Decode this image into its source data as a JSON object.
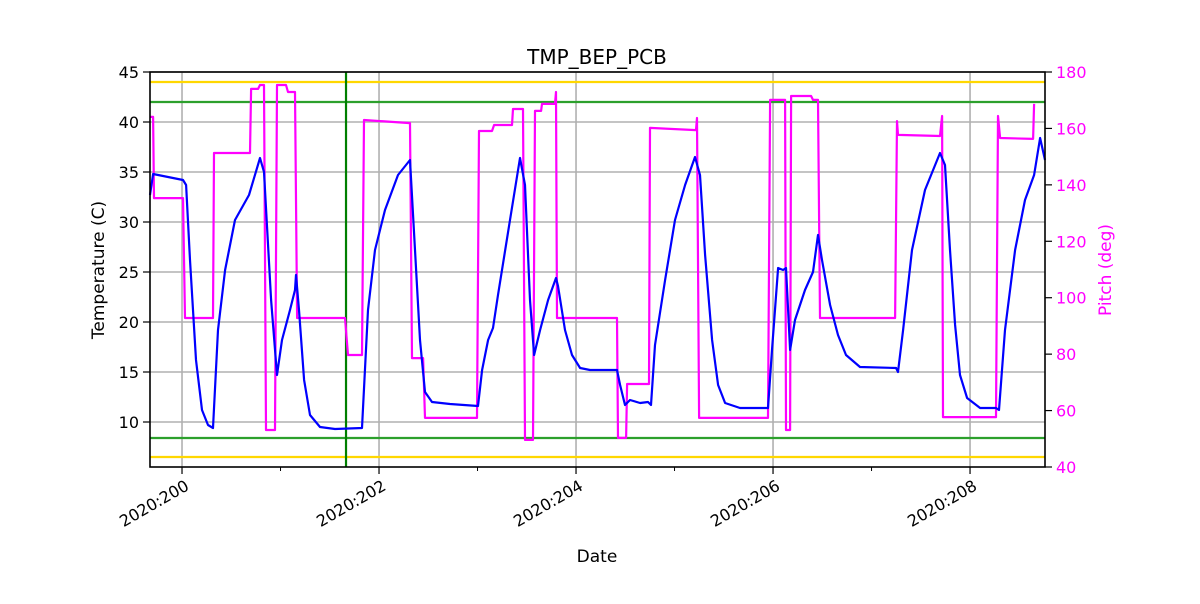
{
  "chart_data": {
    "type": "line",
    "title": "TMP_BEP_PCB",
    "xlabel": "Date",
    "ylabel": "Temperature (C)",
    "y2label": "Pitch (deg)",
    "xlim": [
      199.675,
      208.761
    ],
    "ylim": [
      5.5,
      45
    ],
    "y2lim": [
      40,
      180
    ],
    "grid": true,
    "x_ticks": [
      {
        "value": 200,
        "label": "2020:200"
      },
      {
        "value": 202,
        "label": "2020:202"
      },
      {
        "value": 204,
        "label": "2020:204"
      },
      {
        "value": 206,
        "label": "2020:206"
      },
      {
        "value": 208,
        "label": "2020:208"
      }
    ],
    "x_minor_ticks": [
      201,
      203,
      205,
      207
    ],
    "y_ticks": [
      10,
      15,
      20,
      25,
      30,
      35,
      40,
      45
    ],
    "y2_ticks": [
      40,
      60,
      80,
      100,
      120,
      140,
      160,
      180
    ],
    "colors": {
      "temperature": "#0000ff",
      "pitch": "#ff00ff",
      "caution": "#ffd700",
      "planning": "#2ca02c",
      "marker": "#007f00",
      "grid": "#b0b0b0",
      "y2_axis": "#ff00ff"
    },
    "reference_lines": [
      {
        "axis": "y",
        "value": 44,
        "color": "#ffd700"
      },
      {
        "axis": "y",
        "value": 6.5,
        "color": "#ffd700"
      },
      {
        "axis": "y",
        "value": 42,
        "color": "#2ca02c"
      },
      {
        "axis": "y",
        "value": 8.4,
        "color": "#2ca02c"
      },
      {
        "axis": "x",
        "value": 201.665,
        "color": "#007f00"
      }
    ],
    "series": [
      {
        "axis": "left",
        "color": "#0000ff",
        "x": [
          199.675,
          199.706,
          200.01,
          200.041,
          200.081,
          200.142,
          200.203,
          200.264,
          200.315,
          200.365,
          200.437,
          200.538,
          200.68,
          200.792,
          200.832,
          200.904,
          200.964,
          201.015,
          201.096,
          201.147,
          201.157,
          201.188,
          201.239,
          201.299,
          201.401,
          201.553,
          201.827,
          201.888,
          201.959,
          202.061,
          202.193,
          202.315,
          202.365,
          202.416,
          202.467,
          202.538,
          202.721,
          203.005,
          203.046,
          203.107,
          203.157,
          203.208,
          203.33,
          203.431,
          203.482,
          203.533,
          203.574,
          203.635,
          203.716,
          203.797,
          203.817,
          203.888,
          203.959,
          204.041,
          204.142,
          204.416,
          204.447,
          204.497,
          204.548,
          204.65,
          204.731,
          204.761,
          204.802,
          204.904,
          205.005,
          205.107,
          205.208,
          205.259,
          205.31,
          205.381,
          205.442,
          205.513,
          205.665,
          205.949,
          205.99,
          206.051,
          206.102,
          206.132,
          206.173,
          206.223,
          206.325,
          206.406,
          206.457,
          206.497,
          206.579,
          206.66,
          206.741,
          206.883,
          207.249,
          207.269,
          207.32,
          207.411,
          207.543,
          207.695,
          207.746,
          207.797,
          207.848,
          207.898,
          207.97,
          208.102,
          208.264,
          208.294,
          208.355,
          208.457,
          208.558,
          208.65,
          208.711,
          208.761
        ],
        "y": [
          32.7,
          34.8,
          34.2,
          33.7,
          26.2,
          16.2,
          11.2,
          9.7,
          9.4,
          19.2,
          25.2,
          30.2,
          32.7,
          36.4,
          35.0,
          22.2,
          14.7,
          18.2,
          21.2,
          23.2,
          24.7,
          21.2,
          14.2,
          10.7,
          9.5,
          9.3,
          9.4,
          21.2,
          27.2,
          31.2,
          34.7,
          36.2,
          27.2,
          18.2,
          13.0,
          12.0,
          11.8,
          11.6,
          15.2,
          18.2,
          19.4,
          22.7,
          30.2,
          36.4,
          33.7,
          22.2,
          16.7,
          19.2,
          22.2,
          24.4,
          23.6,
          19.2,
          16.7,
          15.4,
          15.2,
          15.2,
          13.7,
          11.7,
          12.2,
          11.9,
          12.0,
          11.7,
          17.7,
          24.2,
          30.2,
          33.7,
          36.5,
          34.7,
          26.7,
          18.2,
          13.7,
          11.9,
          11.4,
          11.4,
          17.2,
          25.4,
          25.2,
          25.4,
          17.2,
          20.2,
          23.2,
          25.0,
          28.7,
          26.2,
          21.7,
          18.7,
          16.7,
          15.5,
          15.4,
          15.0,
          19.2,
          27.2,
          33.2,
          36.9,
          35.7,
          27.2,
          19.7,
          14.7,
          12.4,
          11.4,
          11.4,
          11.2,
          19.2,
          27.2,
          32.2,
          34.7,
          38.4,
          36.2
        ]
      },
      {
        "axis": "right",
        "color": "#ff00ff",
        "x": [
          199.675,
          199.706,
          199.716,
          200.01,
          200.03,
          200.315,
          200.325,
          200.69,
          200.701,
          200.772,
          200.792,
          200.832,
          200.853,
          200.944,
          200.964,
          201.056,
          201.076,
          201.147,
          201.168,
          201.655,
          201.685,
          201.827,
          201.848,
          202.315,
          202.335,
          202.447,
          202.467,
          202.995,
          203.015,
          203.147,
          203.168,
          203.35,
          203.36,
          203.462,
          203.482,
          203.563,
          203.584,
          203.645,
          203.655,
          203.787,
          203.797,
          203.807,
          204.416,
          204.426,
          204.508,
          204.518,
          204.741,
          204.751,
          205.218,
          205.228,
          205.249,
          205.949,
          205.97,
          206.122,
          206.132,
          206.173,
          206.183,
          206.386,
          206.406,
          206.457,
          206.477,
          207.239,
          207.259,
          207.269,
          207.695,
          207.716,
          207.726,
          208.264,
          208.284,
          208.305,
          208.64,
          208.65
        ],
        "y": [
          164.1,
          164.1,
          135.3,
          135.3,
          92.8,
          92.8,
          151.3,
          151.3,
          174.0,
          174.0,
          175.4,
          175.4,
          53.1,
          53.1,
          175.4,
          175.4,
          172.9,
          172.9,
          92.8,
          92.8,
          79.7,
          79.7,
          163.0,
          161.9,
          78.6,
          78.6,
          57.4,
          57.4,
          159.1,
          159.1,
          161.2,
          161.2,
          166.9,
          166.9,
          49.6,
          49.6,
          166.2,
          166.2,
          168.7,
          168.7,
          172.9,
          92.8,
          92.8,
          50.3,
          50.3,
          69.4,
          69.4,
          160.2,
          159.4,
          163.7,
          57.4,
          57.4,
          170.1,
          170.1,
          53.1,
          53.1,
          171.5,
          171.5,
          170.1,
          170.1,
          92.8,
          92.8,
          162.6,
          157.7,
          157.3,
          164.4,
          57.7,
          57.7,
          164.4,
          156.6,
          156.3,
          168.7
        ]
      }
    ]
  }
}
